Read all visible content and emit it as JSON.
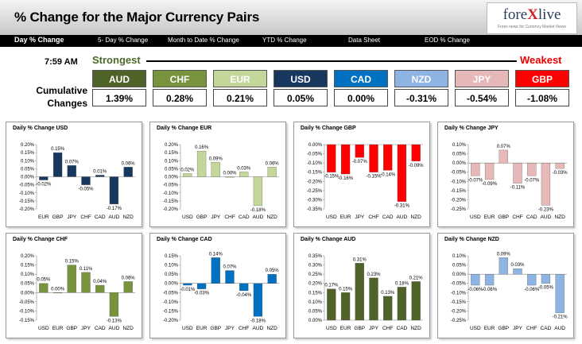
{
  "header": {
    "title": "% Change for the Major Currency Pairs",
    "logo_text": {
      "part1": "fore",
      "part2": "X",
      "part3": "live"
    },
    "logo_sub": "Forex news for Currency Market Views"
  },
  "nav": [
    {
      "label": "Day % Change",
      "active": true
    },
    {
      "label": "5- Day % Change",
      "active": false
    },
    {
      "label": "Month to Date % Change",
      "active": false
    },
    {
      "label": "YTD % Change",
      "active": false
    },
    {
      "label": "Data Sheet",
      "active": false
    },
    {
      "label": "EOD % Change",
      "active": false
    }
  ],
  "summary": {
    "time": "7:59 AM",
    "strongest": "Strongest",
    "weakest": "Weakest",
    "cumulative_label": "Cumulative Changes",
    "currencies": [
      {
        "code": "AUD",
        "value": "1.39%",
        "color": "#4f6228"
      },
      {
        "code": "CHF",
        "value": "0.28%",
        "color": "#77933c"
      },
      {
        "code": "EUR",
        "value": "0.21%",
        "color": "#c4d79b"
      },
      {
        "code": "USD",
        "value": "0.05%",
        "color": "#17375e"
      },
      {
        "code": "CAD",
        "value": "0.00%",
        "color": "#0070c0"
      },
      {
        "code": "NZD",
        "value": "-0.31%",
        "color": "#8db4e2"
      },
      {
        "code": "JPY",
        "value": "-0.54%",
        "color": "#e6b8b7"
      },
      {
        "code": "GBP",
        "value": "-1.08%",
        "color": "#ff0000"
      }
    ]
  },
  "chart_data": [
    {
      "type": "bar",
      "title": "Daily % Change USD",
      "color": "#17375e",
      "categories": [
        "EUR",
        "GBP",
        "JPY",
        "CHF",
        "CAD",
        "AUD",
        "NZD"
      ],
      "values": [
        -0.02,
        0.15,
        0.07,
        -0.05,
        0.01,
        -0.17,
        0.06
      ],
      "labels": [
        "-0.02%",
        "0.15%",
        "0.07%",
        "-0.05%",
        "0.01%",
        "-0.17%",
        "0.06%"
      ],
      "yticks": [
        "0.20%",
        "0.15%",
        "0.10%",
        "0.05%",
        "0.00%",
        "-0.05%",
        "-0.10%",
        "-0.15%",
        "-0.20%"
      ],
      "ylim": [
        -0.2,
        0.2
      ]
    },
    {
      "type": "bar",
      "title": "Daily % Change EUR",
      "color": "#c4d79b",
      "categories": [
        "USD",
        "GBP",
        "JPY",
        "CHF",
        "CAD",
        "AUD",
        "NZD"
      ],
      "values": [
        0.02,
        0.16,
        0.09,
        0.0,
        0.03,
        -0.18,
        0.06
      ],
      "labels": [
        "0.02%",
        "0.16%",
        "0.09%",
        "0.00%",
        "0.03%",
        "-0.18%",
        "0.06%"
      ],
      "yticks": [
        "0.20%",
        "0.15%",
        "0.10%",
        "0.05%",
        "0.00%",
        "-0.05%",
        "-0.10%",
        "-0.15%",
        "-0.20%"
      ],
      "ylim": [
        -0.2,
        0.2
      ]
    },
    {
      "type": "bar",
      "title": "Daily % Change GBP",
      "color": "#ff0000",
      "categories": [
        "USD",
        "EUR",
        "JPY",
        "CHF",
        "CAD",
        "AUD",
        "NZD"
      ],
      "values": [
        -0.15,
        -0.16,
        -0.07,
        -0.15,
        -0.14,
        -0.31,
        -0.09
      ],
      "labels": [
        "-0.15%",
        "-0.16%",
        "-0.07%",
        "-0.15%",
        "-0.14%",
        "-0.31%",
        "-0.09%"
      ],
      "yticks": [
        "0.00%",
        "-0.05%",
        "-0.10%",
        "-0.15%",
        "-0.20%",
        "-0.25%",
        "-0.30%",
        "-0.35%"
      ],
      "ylim": [
        -0.35,
        0.0
      ]
    },
    {
      "type": "bar",
      "title": "Daily % Change JPY",
      "color": "#e6b8b7",
      "categories": [
        "USD",
        "EUR",
        "GBP",
        "CHF",
        "CAD",
        "AUD",
        "NZD"
      ],
      "values": [
        -0.07,
        -0.09,
        0.07,
        -0.11,
        -0.07,
        -0.23,
        -0.03
      ],
      "labels": [
        "-0.07%",
        "-0.09%",
        "0.07%",
        "-0.11%",
        "-0.07%",
        "-0.23%",
        "-0.03%"
      ],
      "yticks": [
        "0.10%",
        "0.05%",
        "0.00%",
        "-0.05%",
        "-0.10%",
        "-0.15%",
        "-0.20%",
        "-0.25%"
      ],
      "ylim": [
        -0.25,
        0.1
      ]
    },
    {
      "type": "bar",
      "title": "Daily % Change CHF",
      "color": "#77933c",
      "categories": [
        "USD",
        "EUR",
        "GBP",
        "JPY",
        "CAD",
        "AUD",
        "NZD"
      ],
      "values": [
        0.05,
        0.0,
        0.15,
        0.11,
        0.04,
        -0.13,
        0.06
      ],
      "labels": [
        "0.05%",
        "0.00%",
        "0.15%",
        "0.11%",
        "0.04%",
        "-0.13%",
        "0.06%"
      ],
      "yticks": [
        "0.20%",
        "0.15%",
        "0.10%",
        "0.05%",
        "0.00%",
        "-0.05%",
        "-0.10%",
        "-0.15%"
      ],
      "ylim": [
        -0.15,
        0.2
      ]
    },
    {
      "type": "bar",
      "title": "Daily % Change CAD",
      "color": "#0070c0",
      "categories": [
        "USD",
        "EUR",
        "GBP",
        "JPY",
        "CHF",
        "AUD",
        "NZD"
      ],
      "values": [
        -0.01,
        -0.03,
        0.14,
        0.07,
        -0.04,
        -0.18,
        0.05
      ],
      "labels": [
        "-0.01%",
        "-0.03%",
        "0.14%",
        "0.07%",
        "-0.04%",
        "-0.18%",
        "0.05%"
      ],
      "yticks": [
        "0.15%",
        "0.10%",
        "0.05%",
        "0.00%",
        "-0.05%",
        "-0.10%",
        "-0.15%",
        "-0.20%"
      ],
      "ylim": [
        -0.2,
        0.15
      ]
    },
    {
      "type": "bar",
      "title": "Daily % Change AUD",
      "color": "#4f6228",
      "categories": [
        "USD",
        "EUR",
        "GBP",
        "JPY",
        "CHF",
        "CAD",
        "NZD"
      ],
      "values": [
        0.17,
        0.15,
        0.31,
        0.23,
        0.13,
        0.18,
        0.21
      ],
      "labels": [
        "0.17%",
        "0.15%",
        "0.31%",
        "0.23%",
        "0.13%",
        "0.18%",
        "0.21%"
      ],
      "yticks": [
        "0.35%",
        "0.30%",
        "0.25%",
        "0.20%",
        "0.15%",
        "0.10%",
        "0.05%",
        "0.00%"
      ],
      "ylim": [
        0.0,
        0.35
      ]
    },
    {
      "type": "bar",
      "title": "Daily % Change NZD",
      "color": "#8db4e2",
      "categories": [
        "USD",
        "EUR",
        "GBP",
        "JPY",
        "CHF",
        "CAD",
        "AUD"
      ],
      "values": [
        -0.06,
        -0.06,
        0.09,
        0.03,
        -0.06,
        -0.05,
        -0.21
      ],
      "labels": [
        "-0.06%",
        "-0.06%",
        "0.09%",
        "0.03%",
        "-0.06%",
        "-0.05%",
        "-0.21%"
      ],
      "yticks": [
        "0.10%",
        "0.05%",
        "0.00%",
        "-0.05%",
        "-0.10%",
        "-0.15%",
        "-0.20%",
        "-0.25%"
      ],
      "ylim": [
        -0.25,
        0.1
      ]
    }
  ]
}
